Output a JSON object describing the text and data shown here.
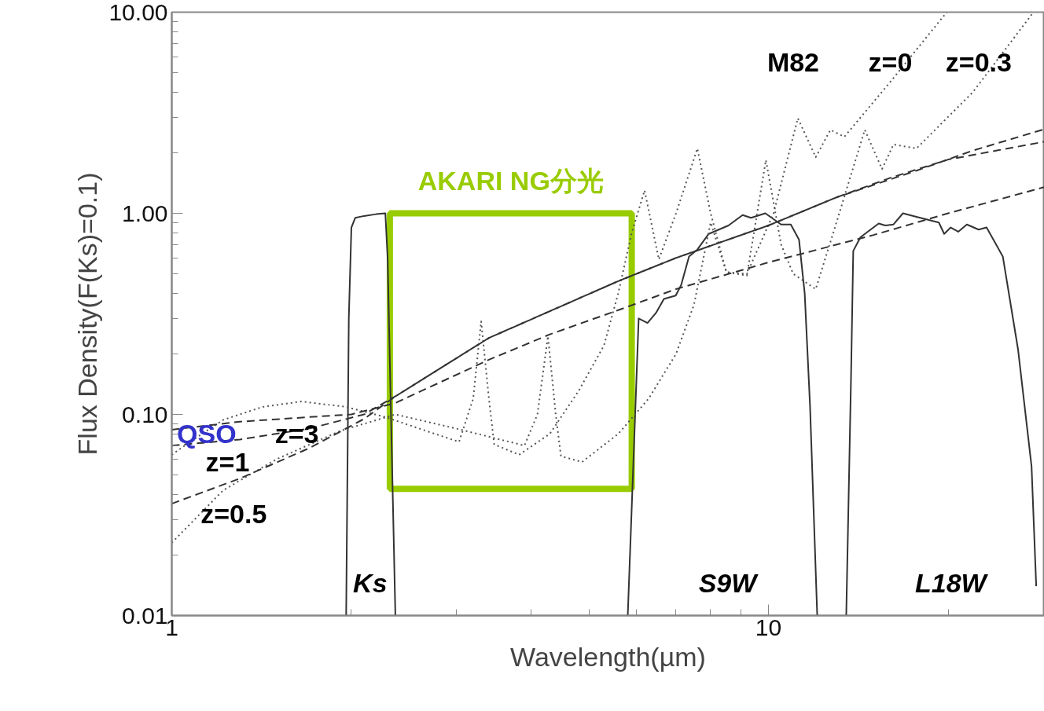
{
  "chart_data": {
    "type": "line",
    "xlabel": "Wavelength(µm)",
    "ylabel": "Flux Density(F(Ks)=0.1)",
    "log": "xy",
    "grid": false,
    "xlim": [
      1,
      29
    ],
    "ylim": [
      0.01,
      10
    ],
    "xticks": [
      1,
      {
        "value": 2,
        "label": null
      },
      {
        "value": 3,
        "label": null
      },
      {
        "value": 4,
        "label": null
      },
      {
        "value": 5,
        "label": null
      },
      {
        "value": 6,
        "label": null
      },
      {
        "value": 7,
        "label": null
      },
      {
        "value": 8,
        "label": null
      },
      {
        "value": 9,
        "label": null
      },
      10,
      {
        "value": 20,
        "label": null
      }
    ],
    "yticks": [
      0.01,
      {
        "value": 0.02,
        "label": null
      },
      {
        "value": 0.03,
        "label": null
      },
      {
        "value": 0.04,
        "label": null
      },
      {
        "value": 0.05,
        "label": null
      },
      {
        "value": 0.06,
        "label": null
      },
      {
        "value": 0.07,
        "label": null
      },
      {
        "value": 0.08,
        "label": null
      },
      {
        "value": 0.09,
        "label": null
      },
      {
        "value": 0.1,
        "label": "0.10"
      },
      {
        "value": 0.2,
        "label": null
      },
      {
        "value": 0.3,
        "label": null
      },
      {
        "value": 0.4,
        "label": null
      },
      {
        "value": 0.5,
        "label": null
      },
      {
        "value": 0.6,
        "label": null
      },
      {
        "value": 0.7,
        "label": null
      },
      {
        "value": 0.8,
        "label": null
      },
      {
        "value": 0.9,
        "label": null
      },
      {
        "value": 1,
        "label": "1.00"
      },
      {
        "value": 2,
        "label": null
      },
      {
        "value": 3,
        "label": null
      },
      {
        "value": 4,
        "label": null
      },
      {
        "value": 5,
        "label": null
      },
      {
        "value": 6,
        "label": null
      },
      {
        "value": 7,
        "label": null
      },
      {
        "value": 8,
        "label": null
      },
      {
        "value": 9,
        "label": null
      },
      {
        "value": 10,
        "label": "10.00"
      }
    ],
    "annotations": [
      "QSO",
      "M82",
      "AKARI NG分光"
    ],
    "series": [
      {
        "name": "Ks",
        "color": "#333333",
        "line_style": "solid",
        "x": [
          1.96,
          1.98,
          2.0,
          2.03,
          2.1,
          2.2,
          2.28,
          2.3,
          2.33,
          2.37
        ],
        "values": [
          0.01,
          0.3,
          0.85,
          0.95,
          0.97,
          0.99,
          1.0,
          0.6,
          0.1,
          0.01
        ]
      },
      {
        "name": "S9W",
        "color": "#333333",
        "line_style": "solid",
        "x": [
          5.81,
          6.06,
          6.27,
          6.48,
          6.68,
          6.99,
          7.14,
          7.36,
          7.6,
          7.94,
          8.57,
          9.05,
          9.35,
          9.88,
          10.5,
          10.9,
          11.25,
          11.5,
          11.74,
          12.07
        ],
        "values": [
          0.01,
          0.3,
          0.285,
          0.32,
          0.375,
          0.39,
          0.44,
          0.61,
          0.66,
          0.79,
          0.87,
          0.98,
          0.95,
          1.0,
          0.88,
          0.88,
          0.74,
          0.4,
          0.11,
          0.01
        ]
      },
      {
        "name": "L18W",
        "color": "#333333",
        "line_style": "solid",
        "x": [
          13.5,
          13.75,
          13.87,
          14.26,
          15.3,
          15.7,
          16.2,
          16.8,
          17.7,
          19.3,
          19.7,
          20.2,
          20.8,
          21.5,
          22.5,
          23.2,
          24.7,
          26.2,
          27.6,
          28.1
        ],
        "values": [
          0.01,
          0.15,
          0.65,
          0.76,
          0.89,
          0.87,
          0.88,
          1.0,
          0.96,
          0.9,
          0.79,
          0.85,
          0.81,
          0.88,
          0.83,
          0.85,
          0.61,
          0.21,
          0.055,
          0.014
        ]
      },
      {
        "name": "z=0",
        "color": "#555555",
        "line_style": "dotted",
        "x": [
          1.0,
          1.08,
          1.22,
          1.42,
          1.65,
          1.96,
          2.28,
          2.6,
          3.03,
          3.2,
          3.3,
          3.4,
          3.47,
          3.82,
          4.3,
          4.8,
          5.3,
          5.6,
          5.9,
          6.2,
          6.55,
          7.0,
          7.6,
          8.0,
          8.5,
          9.2,
          10.2,
          11.2,
          12.0,
          12.7,
          13.4,
          16.0,
          19.9
        ],
        "values": [
          0.063,
          0.074,
          0.094,
          0.109,
          0.116,
          0.109,
          0.097,
          0.085,
          0.073,
          0.12,
          0.29,
          0.12,
          0.071,
          0.063,
          0.08,
          0.13,
          0.22,
          0.4,
          0.8,
          1.3,
          0.59,
          1.0,
          2.1,
          1.0,
          0.51,
          0.5,
          1.0,
          2.97,
          1.9,
          2.6,
          2.4,
          4.5,
          10.0
        ]
      },
      {
        "name": "z=0.3",
        "color": "#555555",
        "line_style": "dotted",
        "x": [
          1.0,
          1.22,
          1.5,
          1.92,
          2.37,
          3.0,
          3.9,
          4.1,
          4.27,
          4.4,
          4.49,
          4.87,
          5.6,
          6.3,
          7.0,
          7.5,
          8.0,
          8.5,
          9.2,
          9.9,
          10.5,
          11.0,
          12.0,
          13.0,
          14.5,
          15.5,
          16.2,
          17.7,
          22.0,
          27.8
        ],
        "values": [
          0.023,
          0.042,
          0.06,
          0.083,
          0.1,
          0.085,
          0.07,
          0.1,
          0.245,
          0.1,
          0.062,
          0.058,
          0.08,
          0.12,
          0.2,
          0.35,
          0.9,
          0.51,
          0.49,
          1.84,
          0.7,
          0.5,
          0.42,
          0.9,
          2.6,
          1.66,
          2.2,
          2.1,
          4.0,
          10.0
        ]
      },
      {
        "name": "z=3",
        "color": "#333333",
        "line_style": "dashed",
        "x": [
          1.0,
          1.3,
          1.7,
          2.0,
          2.37,
          3.4,
          4.3,
          5.6,
          7.0,
          10.0,
          15.0,
          20.0,
          29.0
        ],
        "values": [
          0.084,
          0.092,
          0.097,
          0.1,
          0.114,
          0.187,
          0.25,
          0.33,
          0.42,
          0.57,
          0.78,
          1.0,
          1.35
        ]
      },
      {
        "name": "z=1",
        "color": "#333333",
        "line_style": "dashed",
        "x": [
          1.0,
          1.3,
          1.7,
          2.1,
          2.37,
          3.4,
          5.6,
          7.0,
          10.0,
          13.0,
          16.0,
          20.0,
          29.0
        ],
        "values": [
          0.07,
          0.075,
          0.085,
          0.1,
          0.123,
          0.24,
          0.46,
          0.6,
          0.87,
          1.2,
          1.5,
          1.85,
          2.27
        ]
      },
      {
        "name": "z=0.5",
        "color": "#333333",
        "line_style": "dashed",
        "x": [
          1.0,
          1.3,
          1.7,
          2.1,
          2.37,
          3.4,
          5.6,
          7.0,
          10.0,
          13.0,
          17.7,
          22.0,
          29.0
        ],
        "values": [
          0.036,
          0.048,
          0.068,
          0.095,
          0.123,
          0.24,
          0.46,
          0.6,
          0.87,
          1.2,
          1.63,
          2.05,
          2.62
        ]
      }
    ]
  }
}
